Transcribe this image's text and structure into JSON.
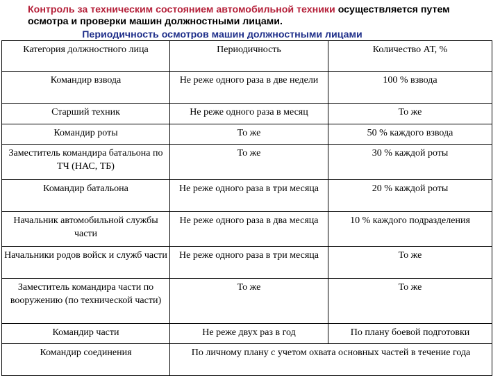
{
  "header": {
    "line1_accent": "Контроль за техническим состоянием автомобильной техники",
    "line1_rest": " осуществляется путем осмотра и проверки машин должностными лицами."
  },
  "subtitle": "Периодичность осмотров машин должностными лицами",
  "colors": {
    "accent": "#b5213a",
    "subtitle": "#1f2f8a",
    "text": "#000000"
  },
  "table": {
    "columns": [
      "Категория должностного лица",
      "Периодичность",
      "Количество АТ, %"
    ],
    "rows": [
      [
        "Командир взвода",
        "Не реже одного раза в две недели",
        "100 % взвода"
      ],
      [
        "Старший техник",
        "Не реже одного раза в месяц",
        "То же"
      ],
      [
        "Командир роты",
        "То же",
        "50 % каждого взвода"
      ],
      [
        "Заместитель командира батальона по ТЧ (НАС, ТБ)",
        "То же",
        "30 % каждой роты"
      ],
      [
        "Командир батальона",
        "Не реже одного раза в три месяца",
        "20 % каждой роты"
      ],
      [
        "Начальник автомобильной службы части",
        "Не реже одного раза в два месяца",
        "10 % каждого подразделения"
      ],
      [
        "Начальники родов войск и служб части",
        "Не реже одного раза в три месяца",
        "То же"
      ],
      [
        "Заместитель командира части по вооружению (по технической части)",
        "То же",
        "То же"
      ],
      [
        "Командир части",
        "Не реже двух раз в год",
        "По плану боевой подготовки"
      ]
    ],
    "last_row": {
      "category": "Командир соединения",
      "merged": "По личному плану с учетом охвата основных частей в течение года"
    }
  }
}
